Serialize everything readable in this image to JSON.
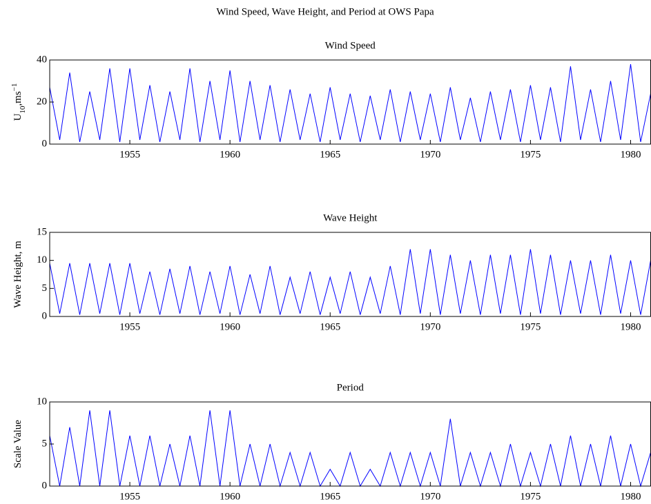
{
  "title": "Wind Speed, Wave Height, and Period at OWS Papa",
  "chart_data": [
    {
      "type": "line",
      "title": "Wind Speed",
      "ylabel": [
        "U",
        "10",
        ",ms",
        "−1"
      ],
      "x": [
        1951,
        1951.5,
        1952,
        1952.5,
        1953,
        1953.5,
        1954,
        1954.5,
        1955,
        1955.5,
        1956,
        1956.5,
        1957,
        1957.5,
        1958,
        1958.5,
        1959,
        1959.5,
        1960,
        1960.5,
        1961,
        1961.5,
        1962,
        1962.5,
        1963,
        1963.5,
        1964,
        1964.5,
        1965,
        1965.5,
        1966,
        1966.5,
        1967,
        1967.5,
        1968,
        1968.5,
        1969,
        1969.5,
        1970,
        1970.5,
        1971,
        1971.5,
        1972,
        1972.5,
        1973,
        1973.5,
        1974,
        1974.5,
        1975,
        1975.5,
        1976,
        1976.5,
        1977,
        1977.5,
        1978,
        1978.5,
        1979,
        1979.5,
        1980,
        1980.5,
        1981
      ],
      "series": [
        {
          "color": "#0000ff",
          "values": [
            27,
            2,
            34,
            1,
            25,
            2,
            36,
            1,
            36,
            2,
            28,
            1,
            25,
            2,
            36,
            1,
            30,
            2,
            35,
            1,
            30,
            2,
            28,
            1,
            26,
            2,
            24,
            1,
            27,
            2,
            24,
            1,
            23,
            2,
            26,
            1,
            25,
            2,
            24,
            1,
            27,
            2,
            22,
            1,
            25,
            2,
            26,
            1,
            28,
            2,
            27,
            1,
            37,
            2,
            26,
            1,
            30,
            2,
            38,
            1,
            24
          ]
        }
      ],
      "xlim": [
        1951,
        1981
      ],
      "xticks": [
        1955,
        1960,
        1965,
        1970,
        1975,
        1980
      ],
      "ylim": [
        0,
        40
      ],
      "yticks": [
        0,
        20,
        40
      ],
      "grid": false
    },
    {
      "type": "line",
      "title": "Wave Height",
      "ylabel": [
        "Wave Height, m"
      ],
      "x": [
        1951,
        1951.5,
        1952,
        1952.5,
        1953,
        1953.5,
        1954,
        1954.5,
        1955,
        1955.5,
        1956,
        1956.5,
        1957,
        1957.5,
        1958,
        1958.5,
        1959,
        1959.5,
        1960,
        1960.5,
        1961,
        1961.5,
        1962,
        1962.5,
        1963,
        1963.5,
        1964,
        1964.5,
        1965,
        1965.5,
        1966,
        1966.5,
        1967,
        1967.5,
        1968,
        1968.5,
        1969,
        1969.5,
        1970,
        1970.5,
        1971,
        1971.5,
        1972,
        1972.5,
        1973,
        1973.5,
        1974,
        1974.5,
        1975,
        1975.5,
        1976,
        1976.5,
        1977,
        1977.5,
        1978,
        1978.5,
        1979,
        1979.5,
        1980,
        1980.5,
        1981
      ],
      "series": [
        {
          "color": "#0000ff",
          "values": [
            9.5,
            0.5,
            9.5,
            0.3,
            9.5,
            0.5,
            9.5,
            0.3,
            9.5,
            0.5,
            8,
            0.3,
            8.5,
            0.5,
            9,
            0.3,
            8,
            0.5,
            9,
            0.3,
            7.5,
            0.5,
            9,
            0.3,
            7,
            0.5,
            8,
            0.3,
            7,
            0.5,
            8,
            0.3,
            7,
            0.5,
            9,
            0.3,
            12,
            0.5,
            12,
            0.3,
            11,
            0.5,
            10,
            0.3,
            11,
            0.5,
            11,
            0.3,
            12,
            0.5,
            11,
            0.3,
            10,
            0.5,
            10,
            0.3,
            11,
            0.5,
            10,
            0.3,
            10
          ]
        }
      ],
      "xlim": [
        1951,
        1981
      ],
      "xticks": [
        1955,
        1960,
        1965,
        1970,
        1975,
        1980
      ],
      "ylim": [
        0,
        15
      ],
      "yticks": [
        0,
        5,
        10,
        15
      ],
      "grid": false
    },
    {
      "type": "line",
      "title": "Period",
      "ylabel": [
        "Scale Value"
      ],
      "x": [
        1951,
        1951.5,
        1952,
        1952.5,
        1953,
        1953.5,
        1954,
        1954.5,
        1955,
        1955.5,
        1956,
        1956.5,
        1957,
        1957.5,
        1958,
        1958.5,
        1959,
        1959.5,
        1960,
        1960.5,
        1961,
        1961.5,
        1962,
        1962.5,
        1963,
        1963.5,
        1964,
        1964.5,
        1965,
        1965.5,
        1966,
        1966.5,
        1967,
        1967.5,
        1968,
        1968.5,
        1969,
        1969.5,
        1970,
        1970.5,
        1971,
        1971.5,
        1972,
        1972.5,
        1973,
        1973.5,
        1974,
        1974.5,
        1975,
        1975.5,
        1976,
        1976.5,
        1977,
        1977.5,
        1978,
        1978.5,
        1979,
        1979.5,
        1980,
        1980.5,
        1981
      ],
      "series": [
        {
          "color": "#0000ff",
          "values": [
            6,
            0,
            7,
            0,
            9,
            0,
            9,
            0,
            6,
            0,
            6,
            0,
            5,
            0,
            6,
            0,
            9,
            0,
            9,
            0,
            5,
            0,
            5,
            0,
            4,
            0,
            4,
            0,
            2,
            0,
            4,
            0,
            2,
            0,
            4,
            0,
            4,
            0,
            4,
            0,
            8,
            0,
            4,
            0,
            4,
            0,
            5,
            0,
            4,
            0,
            5,
            0,
            6,
            0,
            5,
            0,
            6,
            0,
            5,
            0,
            4
          ]
        }
      ],
      "xlim": [
        1951,
        1981
      ],
      "xticks": [
        1955,
        1960,
        1965,
        1970,
        1975,
        1980
      ],
      "ylim": [
        0,
        10
      ],
      "yticks": [
        0,
        5,
        10
      ],
      "grid": false
    }
  ]
}
